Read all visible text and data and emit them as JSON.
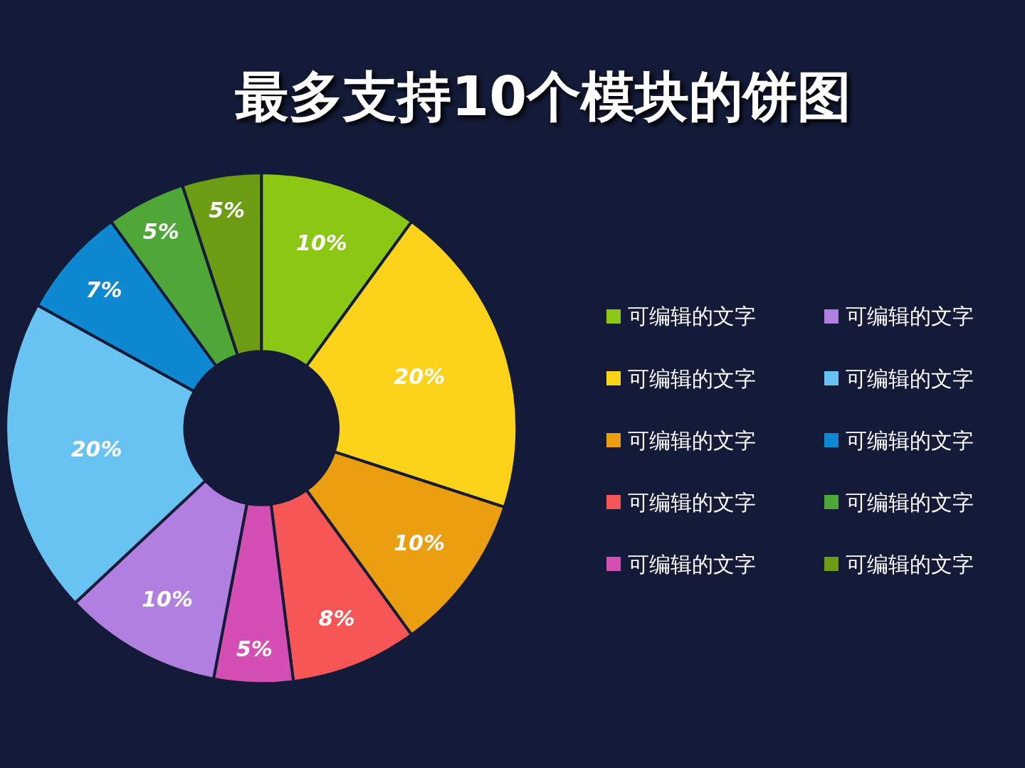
{
  "chart_data": {
    "type": "donut",
    "title": "最多支持10个模块的饼图",
    "categories": [
      "可编辑的文字",
      "可编辑的文字",
      "可编辑的文字",
      "可编辑的文字",
      "可编辑的文字",
      "可编辑的文字",
      "可编辑的文字",
      "可编辑的文字",
      "可编辑的文字",
      "可编辑的文字"
    ],
    "values": [
      10,
      20,
      10,
      8,
      5,
      10,
      20,
      7,
      5,
      5
    ],
    "colors": [
      "#8cc714",
      "#fcd31a",
      "#eb9e10",
      "#f75656",
      "#d44fb4",
      "#b07fe0",
      "#68c3f2",
      "#0e88d0",
      "#4ea736",
      "#6b9c14"
    ],
    "value_labels": [
      "10%",
      "20%",
      "10%",
      "8%",
      "5%",
      "10%",
      "20%",
      "7%",
      "5%",
      "5%"
    ],
    "legend": "right"
  }
}
